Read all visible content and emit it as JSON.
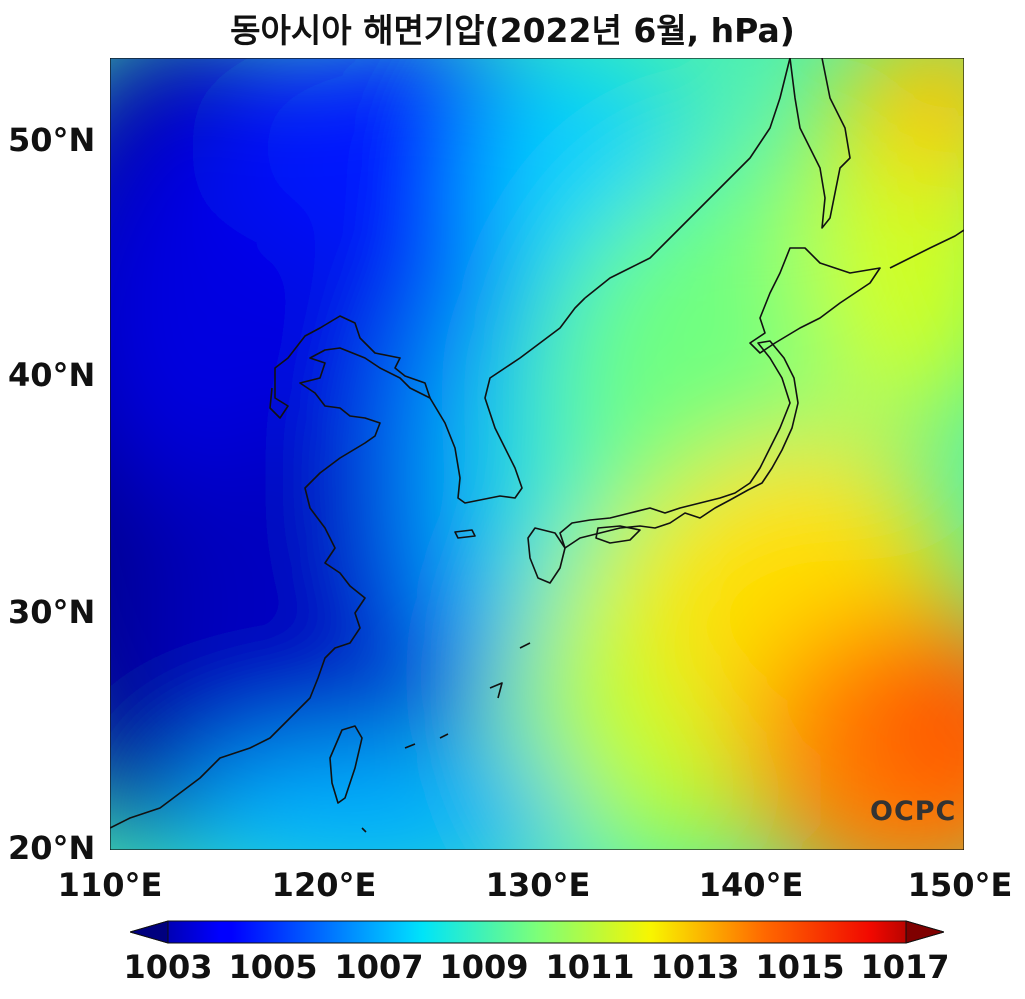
{
  "title": "동아시아 해면기압(2022년 6월, hPa)",
  "map": {
    "lat_labels": [
      "50°N",
      "40°N",
      "30°N",
      "20°N"
    ],
    "lon_labels": [
      "110°E",
      "120°E",
      "130°E",
      "140°E",
      "150°E"
    ],
    "lat_values": [
      50,
      40,
      30,
      20
    ],
    "lon_values": [
      110,
      120,
      130,
      140,
      150
    ],
    "extent": {
      "lon": [
        110,
        150
      ],
      "lat": [
        20,
        53.5
      ]
    }
  },
  "colorbar": {
    "tick_labels": [
      "1003",
      "1005",
      "1007",
      "1009",
      "1011",
      "1013",
      "1015",
      "1017"
    ],
    "tick_values": [
      1003,
      1005,
      1007,
      1009,
      1011,
      1013,
      1015,
      1017
    ],
    "range": [
      1003,
      1017
    ],
    "colormap": "jet",
    "extend": "both"
  },
  "logo": "OCPC",
  "colors": {
    "coast": "#111111",
    "background": "#ffffff"
  }
}
